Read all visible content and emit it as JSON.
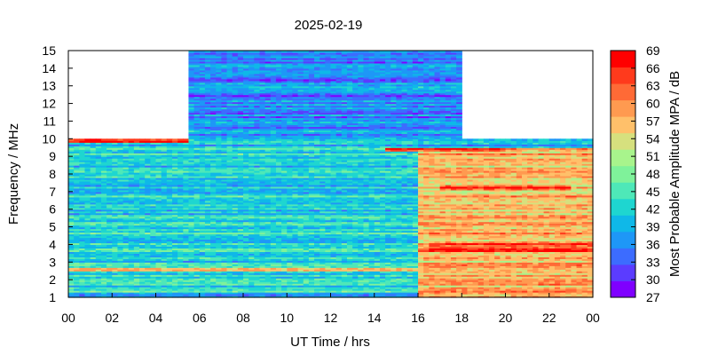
{
  "chart_data": {
    "type": "heatmap",
    "title": "2025-02-19",
    "xlabel": "UT Time / hrs",
    "ylabel": "Frequency / MHz",
    "colorbar_label": "Most Probable Amplitude MPA / dB",
    "x_range": [
      0,
      24
    ],
    "y_range": [
      1,
      15
    ],
    "x_ticks": [
      "00",
      "02",
      "04",
      "06",
      "08",
      "10",
      "12",
      "14",
      "16",
      "18",
      "20",
      "22",
      "00"
    ],
    "y_ticks": [
      "1",
      "2",
      "3",
      "4",
      "5",
      "6",
      "7",
      "8",
      "9",
      "10",
      "11",
      "12",
      "13",
      "14",
      "15"
    ],
    "colorbar": {
      "range": [
        27,
        69
      ],
      "ticks": [
        "27",
        "30",
        "33",
        "36",
        "39",
        "42",
        "45",
        "48",
        "51",
        "54",
        "57",
        "60",
        "63",
        "66",
        "69"
      ],
      "colors": [
        "#7f00ff",
        "#5b3cff",
        "#3c6cff",
        "#1e97f7",
        "#0fb8e8",
        "#1ed6d0",
        "#4ee8b8",
        "#7ff29a",
        "#a8f48c",
        "#d6e07e",
        "#ffc06a",
        "#ff9a50",
        "#ff6a36",
        "#ff3a1c",
        "#ff0000"
      ]
    },
    "coverage": [
      {
        "x": [
          0,
          5.5
        ],
        "y": [
          1,
          10
        ]
      },
      {
        "x": [
          5.5,
          18
        ],
        "y": [
          1,
          15
        ]
      },
      {
        "x": [
          18,
          24
        ],
        "y": [
          1,
          10
        ]
      }
    ],
    "features": [
      {
        "desc": "strong interference band near top of 0-5.5h block",
        "x": [
          0,
          5.5
        ],
        "y": [
          9.8,
          10
        ],
        "level": 66
      },
      {
        "desc": "evening enhancement 16-24h",
        "x": [
          16,
          24
        ],
        "y": [
          1,
          9.5
        ],
        "level": 57
      },
      {
        "desc": "daytime high frequency band",
        "x": [
          5.5,
          18
        ],
        "y": [
          10,
          15
        ],
        "level": 36
      },
      {
        "desc": "horizontal red band near 7.2 MHz evening",
        "x": [
          17,
          23
        ],
        "y": [
          7.1,
          7.4
        ],
        "level": 66
      },
      {
        "desc": "horizontal red band near 3.8 MHz evening",
        "x": [
          16.5,
          24
        ],
        "y": [
          3.6,
          4.2
        ],
        "level": 63
      },
      {
        "desc": "horizontal red band near 2.6 MHz",
        "x": [
          0,
          24
        ],
        "y": [
          2.5,
          2.7
        ],
        "level": 60
      },
      {
        "desc": "band near 9.4 MHz",
        "x": [
          14.5,
          20
        ],
        "y": [
          9.3,
          9.5
        ],
        "level": 63
      }
    ],
    "grid": false,
    "legend": "none"
  }
}
